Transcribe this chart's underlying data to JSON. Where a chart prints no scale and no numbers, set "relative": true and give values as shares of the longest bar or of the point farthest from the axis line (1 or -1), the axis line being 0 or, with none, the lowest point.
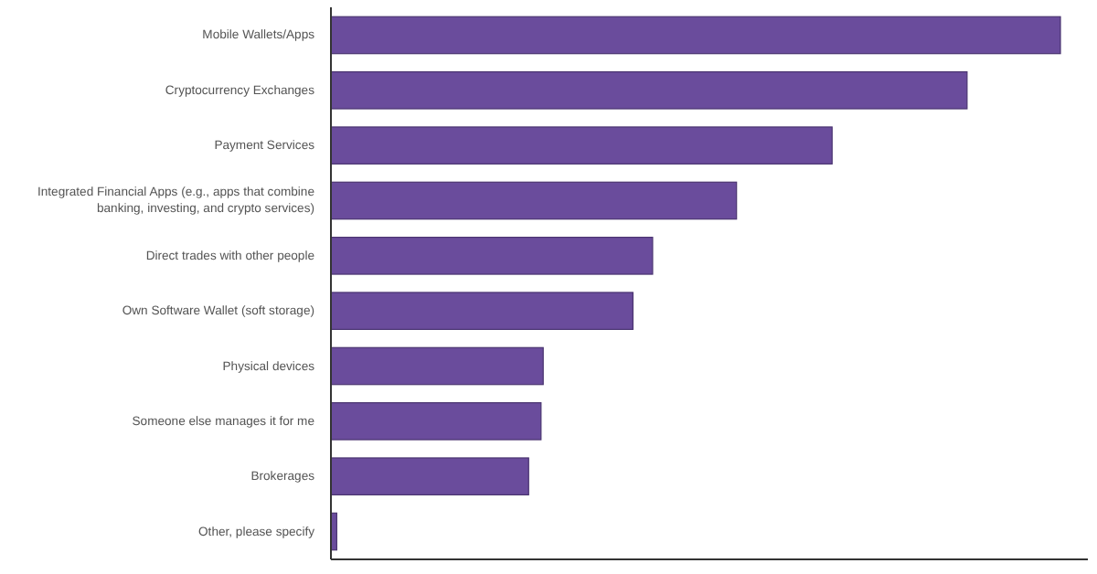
{
  "chart_data": {
    "type": "bar",
    "orientation": "horizontal",
    "relative": true,
    "categories": [
      "Mobile Wallets/Apps",
      "Cryptocurrency Exchanges",
      "Payment Services",
      "Integrated Financial Apps (e.g., apps that combine banking, investing, and crypto services)",
      "Direct trades with other people",
      "Own Software Wallet (soft storage)",
      "Physical devices",
      "Someone else manages it for me",
      "Brokerages",
      "Other, please specify"
    ],
    "values": [
      1,
      0.872,
      0.687,
      0.556,
      0.441,
      0.414,
      0.291,
      0.288,
      0.271,
      0.008
    ],
    "color": "#6a4c9c"
  }
}
